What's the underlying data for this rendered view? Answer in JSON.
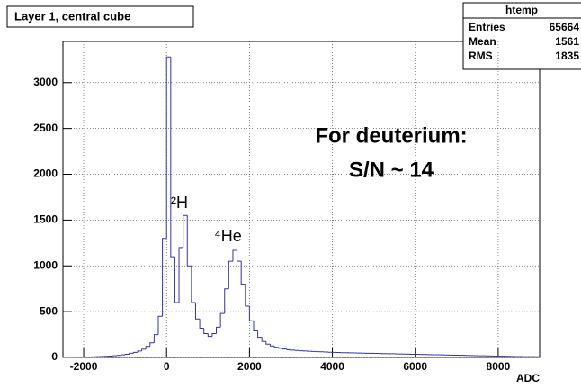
{
  "chart_data": {
    "type": "histogram",
    "title": "Layer 1, central cube",
    "x_label": "ADC",
    "stats": {
      "name": "htemp",
      "rows": [
        [
          "Entries",
          "65664"
        ],
        [
          "Mean",
          "1561"
        ],
        [
          "RMS",
          "1835"
        ]
      ]
    },
    "annotations": [
      "²H",
      "⁴He",
      "For deuterium:",
      "S/N ~ 14"
    ],
    "color": "#3333aa",
    "grid": true,
    "xlim": [
      -2500,
      9000
    ],
    "ylim": [
      0,
      3450
    ],
    "xticks": [
      -2000,
      0,
      2000,
      4000,
      6000,
      8000
    ],
    "yticks": [
      0,
      500,
      1000,
      1500,
      2000,
      2500,
      3000
    ],
    "bins": [
      -2500,
      -2400,
      -2300,
      -2200,
      -2100,
      -2000,
      -1900,
      -1800,
      -1700,
      -1600,
      -1500,
      -1400,
      -1300,
      -1200,
      -1100,
      -1000,
      -900,
      -800,
      -700,
      -600,
      -500,
      -400,
      -300,
      -200,
      -100,
      0,
      100,
      200,
      300,
      400,
      500,
      600,
      700,
      800,
      900,
      1000,
      1100,
      1200,
      1300,
      1400,
      1500,
      1600,
      1700,
      1800,
      1900,
      2000,
      2100,
      2200,
      2300,
      2400,
      2500,
      2600,
      2700,
      2800,
      2900,
      3000,
      3100,
      3200,
      3300,
      3400,
      3500,
      3600,
      3700,
      3800,
      3900,
      4000,
      4100,
      4200,
      4300,
      4400,
      4500,
      4600,
      4700,
      4800,
      4900,
      5000,
      5100,
      5200,
      5300,
      5400,
      5500,
      5600,
      5700,
      5800,
      5900,
      6000,
      6100,
      6200,
      6300,
      6400,
      6500,
      6600,
      6700,
      6800,
      6900,
      7000,
      7100,
      7200,
      7300,
      7400,
      7500,
      7600,
      7700,
      7800,
      7900,
      8000,
      8100,
      8200,
      8300,
      8400,
      8500,
      8600,
      8700,
      8800,
      8900,
      9000
    ],
    "values": [
      0,
      0,
      0,
      2,
      3,
      4,
      5,
      6,
      8,
      10,
      12,
      15,
      18,
      22,
      28,
      35,
      45,
      55,
      70,
      90,
      120,
      160,
      250,
      450,
      1300,
      3280,
      1100,
      600,
      1200,
      1550,
      1000,
      600,
      420,
      320,
      260,
      230,
      260,
      330,
      480,
      750,
      1050,
      1170,
      1050,
      800,
      560,
      400,
      290,
      220,
      175,
      145,
      125,
      110,
      100,
      92,
      85,
      80,
      76,
      72,
      70,
      68,
      65,
      63,
      61,
      59,
      57,
      55,
      54,
      52,
      51,
      50,
      49,
      48,
      47,
      46,
      45,
      44,
      43,
      42,
      41,
      40,
      39,
      38,
      37,
      36,
      35,
      34,
      33,
      32,
      31,
      30,
      29,
      28,
      27,
      26,
      25,
      24,
      23,
      22,
      21,
      20,
      19,
      18,
      17,
      16,
      15,
      14,
      13,
      12,
      11,
      10,
      10,
      9,
      9,
      8,
      8
    ]
  }
}
